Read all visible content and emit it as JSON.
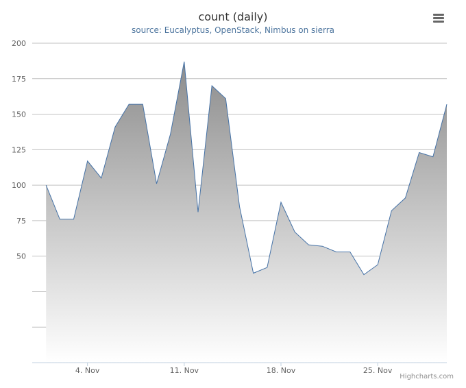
{
  "chart_data": {
    "type": "area",
    "title": "count (daily)",
    "subtitle": "source: Eucalyptus, OpenStack, Nimbus on sierra",
    "x": [
      "2012-11-01",
      "2012-11-02",
      "2012-11-03",
      "2012-11-04",
      "2012-11-05",
      "2012-11-06",
      "2012-11-07",
      "2012-11-08",
      "2012-11-09",
      "2012-11-10",
      "2012-11-11",
      "2012-11-12",
      "2012-11-13",
      "2012-11-14",
      "2012-11-15",
      "2012-11-16",
      "2012-11-17",
      "2012-11-18",
      "2012-11-19",
      "2012-11-20",
      "2012-11-21",
      "2012-11-22",
      "2012-11-23",
      "2012-11-24",
      "2012-11-25",
      "2012-11-26",
      "2012-11-27",
      "2012-11-28",
      "2012-11-29",
      "2012-11-30"
    ],
    "series": [
      {
        "values": [
          100,
          76,
          76,
          117,
          105,
          141,
          157,
          157,
          101,
          136,
          187,
          81,
          170,
          161,
          85,
          38,
          42,
          88,
          67,
          58,
          57,
          53,
          53,
          37,
          44,
          82,
          91,
          123,
          120,
          157
        ]
      }
    ],
    "x_ticks": [
      {
        "label": "4. Nov",
        "date": "2012-11-04"
      },
      {
        "label": "11. Nov",
        "date": "2012-11-11"
      },
      {
        "label": "18. Nov",
        "date": "2012-11-18"
      },
      {
        "label": "25. Nov",
        "date": "2012-11-25"
      }
    ],
    "y_ticks": [
      "50",
      "75",
      "100",
      "125",
      "150",
      "175",
      "200"
    ],
    "ylim": [
      -25,
      200
    ],
    "xlim": [
      "2012-10-31",
      "2012-11-30"
    ],
    "grid": true,
    "legend": "none",
    "colors": {
      "line": "#4572a7",
      "fill_top": "#8c8c8c",
      "fill_bottom": "#ffffff",
      "grid": "#c0c0c0",
      "axis": "#c0d0e0"
    }
  },
  "ui": {
    "menu_icon": "hamburger-menu-icon",
    "credits": "Highcharts.com"
  }
}
